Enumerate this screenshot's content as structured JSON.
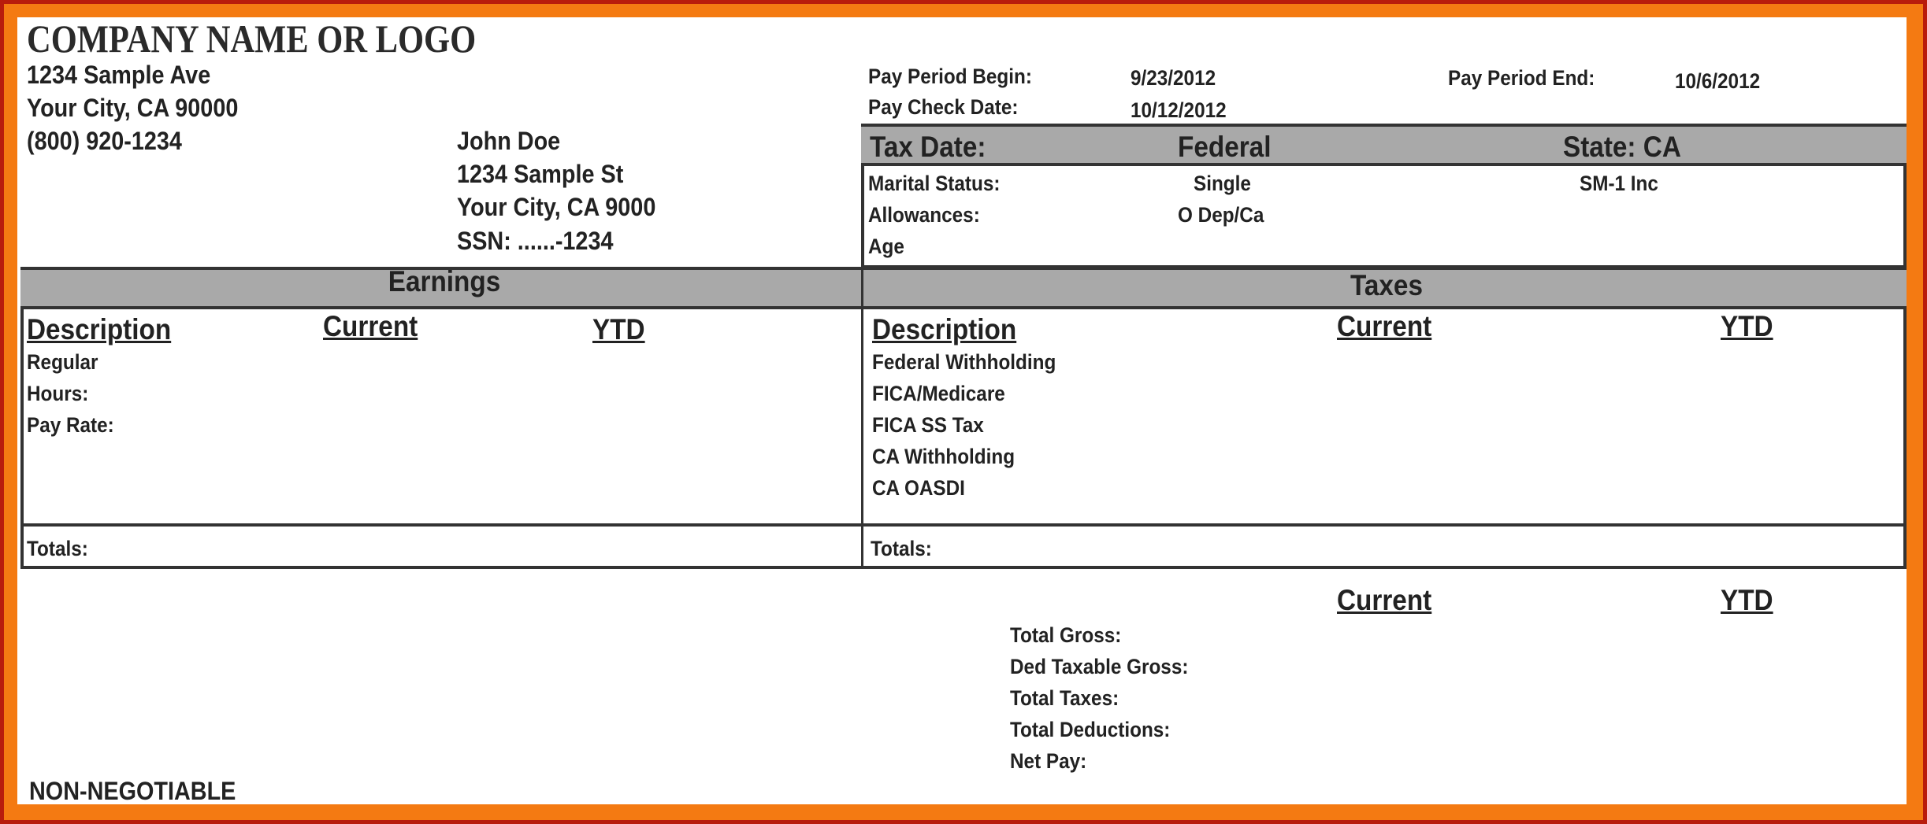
{
  "company": {
    "name": "COMPANY NAME OR LOGO",
    "address1": "1234 Sample Ave",
    "address2": "Your City, CA 90000",
    "phone": "(800) 920-1234"
  },
  "employee": {
    "name": "John Doe",
    "address1": "1234 Sample St",
    "address2": "Your City, CA 9000",
    "ssn": "SSN: ......-1234"
  },
  "pay_period": {
    "begin_label": "Pay Period Begin:",
    "begin": "9/23/2012",
    "end_label": "Pay Period End:",
    "end": "10/6/2012",
    "check_label": "Pay Check Date:",
    "check": "10/12/2012"
  },
  "tax_info": {
    "header": [
      "Tax Date:",
      "Federal",
      "State: CA"
    ],
    "rows": [
      {
        "label": "Marital Status:",
        "federal": "Single",
        "state": "SM-1 Inc"
      },
      {
        "label": "Allowances:",
        "federal": "O Dep/Ca",
        "state": ""
      },
      {
        "label": "Age",
        "federal": "",
        "state": ""
      }
    ]
  },
  "earnings": {
    "title": "Earnings",
    "columns": [
      "Description",
      "Current",
      "YTD"
    ],
    "rows": [
      "Regular",
      "Hours:",
      "Pay Rate:"
    ],
    "totals": "Totals:"
  },
  "taxes": {
    "title": "Taxes",
    "columns": [
      "Description",
      "Current",
      "YTD"
    ],
    "rows": [
      "Federal Withholding",
      "FICA/Medicare",
      "FICA SS Tax",
      "CA Withholding",
      "CA OASDI"
    ],
    "totals": "Totals:"
  },
  "summary": {
    "columns": [
      "Current",
      "YTD"
    ],
    "rows": [
      "Total Gross:",
      "Ded Taxable Gross:",
      "Total Taxes:",
      "Total Deductions:",
      "Net Pay:"
    ]
  },
  "footer": "NON-NEGOTIABLE",
  "colors": {
    "frame": "#f47a12",
    "header_bar": "#a9a9a9"
  }
}
